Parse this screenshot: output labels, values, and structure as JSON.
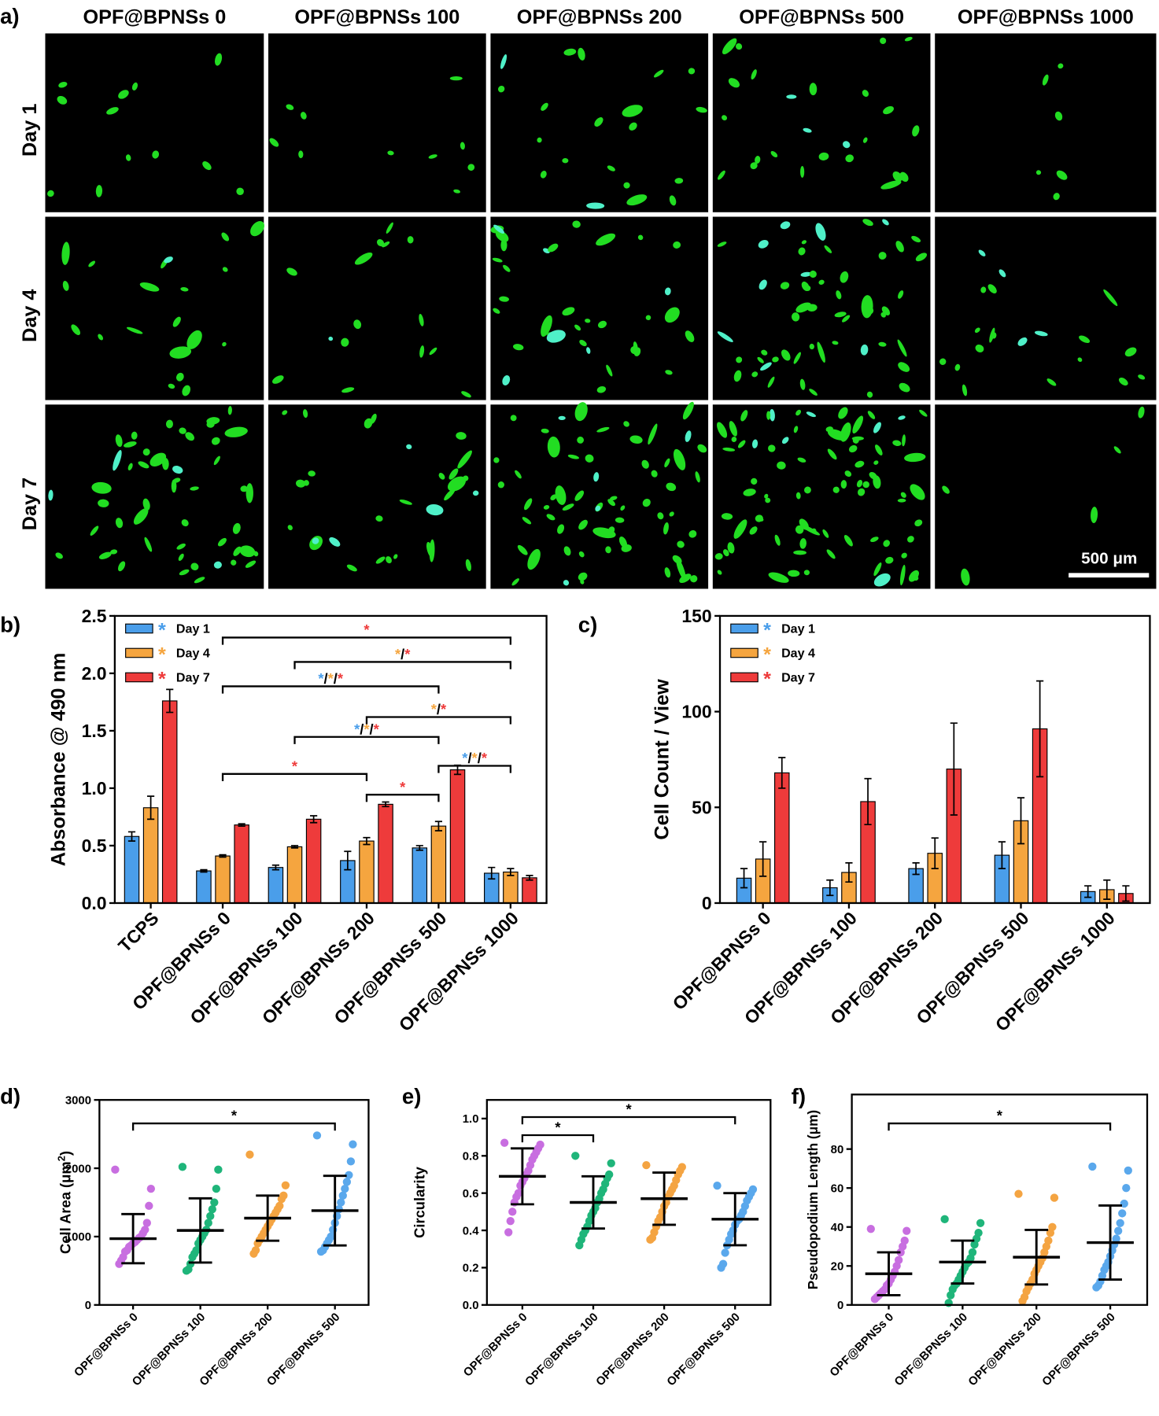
{
  "panel_a": {
    "label": "a)",
    "columns": [
      "OPF@BPNSs 0",
      "OPF@BPNSs 100",
      "OPF@BPNSs 200",
      "OPF@BPNSs 500",
      "OPF@BPNSs 1000"
    ],
    "rows": [
      "Day 1",
      "Day 4",
      "Day 7"
    ],
    "scale_bar": "500 μm"
  },
  "chart_data": [
    {
      "type": "bar",
      "panel_label": "b)",
      "y_label": "Absorbance @ 490 nm",
      "categories": [
        "TCPS",
        "OPF@BPNSs 0",
        "OPF@BPNSs 100",
        "OPF@BPNSs 200",
        "OPF@BPNSs 500",
        "OPF@BPNSs 1000"
      ],
      "legend_marker": "*",
      "legend": "upper left",
      "series": [
        {
          "name": "Day 1",
          "color": "#4a9eea",
          "values": [
            0.58,
            0.28,
            0.31,
            0.37,
            0.48,
            0.26
          ],
          "errors": [
            0.04,
            0.01,
            0.02,
            0.08,
            0.02,
            0.05
          ]
        },
        {
          "name": "Day 4",
          "color": "#f5a53f",
          "values": [
            0.83,
            0.41,
            0.49,
            0.54,
            0.67,
            0.27
          ],
          "errors": [
            0.1,
            0.01,
            0.01,
            0.03,
            0.04,
            0.03
          ]
        },
        {
          "name": "Day 7",
          "color": "#ee3b3b",
          "values": [
            1.76,
            0.68,
            0.73,
            0.86,
            1.16,
            0.22
          ],
          "errors": [
            0.1,
            0.01,
            0.03,
            0.02,
            0.04,
            0.02
          ]
        }
      ],
      "ylim": [
        0,
        2.5
      ],
      "yticks": [
        {
          "value": 0,
          "label": "0.0"
        },
        {
          "value": 0.5,
          "label": "0.5"
        },
        {
          "value": 1,
          "label": "1.0"
        },
        {
          "value": 1.5,
          "label": "1.5"
        },
        {
          "value": 2,
          "label": "2.0"
        },
        {
          "value": 2.5,
          "label": "2.5"
        }
      ],
      "annotations": [
        {
          "from": 1,
          "to": 5,
          "parts": [
            {
              "text": "*",
              "color": "#ee3b3b"
            }
          ]
        },
        {
          "from": 2,
          "to": 5,
          "parts": [
            {
              "text": "*",
              "color": "#f5a53f"
            },
            {
              "text": "/",
              "color": "#000000"
            },
            {
              "text": "*",
              "color": "#ee3b3b"
            }
          ]
        },
        {
          "from": 1,
          "to": 4,
          "parts": [
            {
              "text": "*",
              "color": "#4a9eea"
            },
            {
              "text": "/",
              "color": "#000000"
            },
            {
              "text": "*",
              "color": "#f5a53f"
            },
            {
              "text": "/",
              "color": "#000000"
            },
            {
              "text": "*",
              "color": "#ee3b3b"
            }
          ]
        },
        {
          "from": 3,
          "to": 5,
          "parts": [
            {
              "text": "*",
              "color": "#f5a53f"
            },
            {
              "text": "/",
              "color": "#000000"
            },
            {
              "text": "*",
              "color": "#ee3b3b"
            }
          ]
        },
        {
          "from": 2,
          "to": 4,
          "parts": [
            {
              "text": "*",
              "color": "#4a9eea"
            },
            {
              "text": "/",
              "color": "#000000"
            },
            {
              "text": "*",
              "color": "#f5a53f"
            },
            {
              "text": "/",
              "color": "#000000"
            },
            {
              "text": "*",
              "color": "#ee3b3b"
            }
          ]
        },
        {
          "from": 4,
          "to": 5,
          "parts": [
            {
              "text": "*",
              "color": "#4a9eea"
            },
            {
              "text": "/",
              "color": "#000000"
            },
            {
              "text": "*",
              "color": "#f5a53f"
            },
            {
              "text": "/",
              "color": "#000000"
            },
            {
              "text": "*",
              "color": "#ee3b3b"
            }
          ]
        },
        {
          "from": 1,
          "to": 3,
          "parts": [
            {
              "text": "*",
              "color": "#ee3b3b"
            }
          ]
        },
        {
          "from": 3,
          "to": 4,
          "parts": [
            {
              "text": "*",
              "color": "#ee3b3b"
            }
          ]
        }
      ]
    },
    {
      "type": "bar",
      "panel_label": "c)",
      "y_label": "Cell Count / View",
      "categories": [
        "OPF@BPNSs 0",
        "OPF@BPNSs 100",
        "OPF@BPNSs 200",
        "OPF@BPNSs 500",
        "OPF@BPNSs 1000"
      ],
      "legend_marker": "*",
      "legend": "upper left",
      "series": [
        {
          "name": "Day 1",
          "color": "#4a9eea",
          "values": [
            13,
            8,
            18,
            25,
            6
          ],
          "errors": [
            5,
            4,
            3,
            7,
            3
          ]
        },
        {
          "name": "Day 4",
          "color": "#f5a53f",
          "values": [
            23,
            16,
            26,
            43,
            7
          ],
          "errors": [
            9,
            5,
            8,
            12,
            5
          ]
        },
        {
          "name": "Day 7",
          "color": "#ee3b3b",
          "values": [
            68,
            53,
            70,
            91,
            5
          ],
          "errors": [
            8,
            12,
            24,
            25,
            4
          ]
        }
      ],
      "ylim": [
        0,
        150
      ],
      "yticks": [
        0,
        50,
        100,
        150
      ]
    },
    {
      "type": "dot",
      "panel_label": "d)",
      "y_label": [
        {
          "text": "Cell Area (μm"
        },
        {
          "text": "2",
          "superscript": true
        },
        {
          "text": ")"
        }
      ],
      "categories": [
        "OPF@BPNSs 0",
        "OPF@BPNSs 100",
        "OPF@BPNSs 200",
        "OPF@BPNSs 500"
      ],
      "groups": [
        {
          "color": "#c86ee0",
          "mean": 970,
          "sd": 360,
          "values": [
            1980,
            1700,
            1450,
            1200,
            1100,
            1050,
            1000,
            980,
            950,
            920,
            900,
            870,
            850,
            800,
            780,
            700,
            650,
            600
          ]
        },
        {
          "color": "#1fb57a",
          "mean": 1090,
          "sd": 470,
          "values": [
            2020,
            1980,
            1700,
            1500,
            1400,
            1300,
            1200,
            1100,
            1050,
            1000,
            950,
            900,
            800,
            750,
            700,
            600,
            520,
            500
          ]
        },
        {
          "color": "#f4a442",
          "mean": 1270,
          "sd": 330,
          "values": [
            2200,
            1750,
            1600,
            1550,
            1450,
            1400,
            1350,
            1300,
            1250,
            1200,
            1150,
            1100,
            1050,
            1000,
            950,
            900,
            800,
            750
          ]
        },
        {
          "color": "#5aa8ec",
          "mean": 1380,
          "sd": 510,
          "values": [
            2480,
            2350,
            2100,
            1900,
            1800,
            1700,
            1600,
            1500,
            1400,
            1300,
            1200,
            1100,
            1000,
            950,
            900,
            850,
            800,
            780
          ]
        }
      ],
      "ylim": [
        0,
        3000
      ],
      "yticks": [
        0,
        1000,
        2000,
        3000
      ],
      "annotations": [
        {
          "from": 0,
          "to": 3,
          "parts": [
            {
              "text": "*",
              "color": "#000000"
            }
          ]
        }
      ]
    },
    {
      "type": "dot",
      "panel_label": "e)",
      "y_label": "Circularity",
      "categories": [
        "OPF@BPNSs 0",
        "OPF@BPNSs 100",
        "OPF@BPNSs 200",
        "OPF@BPNSs 500"
      ],
      "groups": [
        {
          "color": "#c86ee0",
          "mean": 0.69,
          "sd": 0.15,
          "values": [
            0.87,
            0.86,
            0.84,
            0.82,
            0.8,
            0.78,
            0.75,
            0.72,
            0.7,
            0.68,
            0.66,
            0.64,
            0.6,
            0.58,
            0.55,
            0.5,
            0.45,
            0.39
          ]
        },
        {
          "color": "#1fb57a",
          "mean": 0.55,
          "sd": 0.14,
          "values": [
            0.8,
            0.76,
            0.7,
            0.68,
            0.65,
            0.62,
            0.6,
            0.57,
            0.55,
            0.52,
            0.5,
            0.48,
            0.45,
            0.42,
            0.4,
            0.38,
            0.35,
            0.32
          ]
        },
        {
          "color": "#f4a442",
          "mean": 0.57,
          "sd": 0.14,
          "values": [
            0.75,
            0.74,
            0.72,
            0.7,
            0.67,
            0.64,
            0.62,
            0.6,
            0.58,
            0.55,
            0.53,
            0.5,
            0.47,
            0.45,
            0.42,
            0.39,
            0.36,
            0.35
          ]
        },
        {
          "color": "#5aa8ec",
          "mean": 0.46,
          "sd": 0.14,
          "values": [
            0.64,
            0.62,
            0.6,
            0.58,
            0.56,
            0.53,
            0.5,
            0.48,
            0.46,
            0.45,
            0.43,
            0.4,
            0.38,
            0.35,
            0.32,
            0.28,
            0.22,
            0.2
          ]
        }
      ],
      "ylim": [
        0,
        1.1
      ],
      "yticks": [
        {
          "value": 0,
          "label": "0.0"
        },
        {
          "value": 0.2,
          "label": "0.2"
        },
        {
          "value": 0.4,
          "label": "0.4"
        },
        {
          "value": 0.6,
          "label": "0.6"
        },
        {
          "value": 0.8,
          "label": "0.8"
        },
        {
          "value": 1,
          "label": "1.0"
        }
      ],
      "annotations": [
        {
          "from": 0,
          "to": 1,
          "parts": [
            {
              "text": "*",
              "color": "#000000"
            }
          ]
        },
        {
          "from": 0,
          "to": 3,
          "parts": [
            {
              "text": "*",
              "color": "#000000"
            }
          ]
        }
      ]
    },
    {
      "type": "dot",
      "panel_label": "f)",
      "y_label": "Pseudopodium Length (μm)",
      "categories": [
        "OPF@BPNSs 0",
        "OPF@BPNSs 100",
        "OPF@BPNSs 200",
        "OPF@BPNSs 500"
      ],
      "groups": [
        {
          "color": "#c86ee0",
          "mean": 16,
          "sd": 11,
          "values": [
            39,
            38,
            33,
            30,
            27,
            23,
            20,
            17,
            15,
            13,
            11,
            10,
            8,
            7,
            6,
            5,
            4,
            3
          ]
        },
        {
          "color": "#1fb57a",
          "mean": 22,
          "sd": 11,
          "values": [
            44,
            42,
            37,
            34,
            31,
            27,
            24,
            22,
            21,
            19,
            17,
            15,
            13,
            11,
            10,
            8,
            5,
            1
          ]
        },
        {
          "color": "#f4a442",
          "mean": 24.5,
          "sd": 14,
          "values": [
            57,
            55,
            40,
            37,
            33,
            30,
            27,
            24,
            22,
            20,
            18,
            16,
            13,
            11,
            9,
            7,
            4,
            2
          ]
        },
        {
          "color": "#5aa8ec",
          "mean": 32,
          "sd": 19,
          "values": [
            71,
            69,
            60,
            52,
            47,
            42,
            38,
            34,
            31,
            28,
            25,
            22,
            20,
            18,
            15,
            12,
            10,
            9
          ]
        }
      ],
      "ylim": [
        0,
        108
      ],
      "yticks": [
        0,
        20,
        40,
        60,
        80
      ],
      "annotations": [
        {
          "from": 0,
          "to": 3,
          "parts": [
            {
              "text": "*",
              "color": "#000000"
            }
          ]
        }
      ]
    }
  ]
}
